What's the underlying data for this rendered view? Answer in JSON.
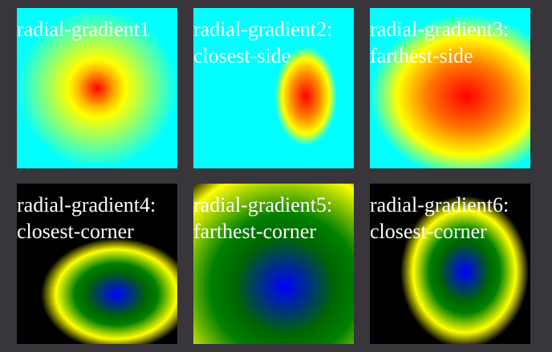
{
  "page": {
    "background": "#38353b"
  },
  "tiles": [
    {
      "id": "t1",
      "lines": [
        "radial-gradient1"
      ],
      "colors": [
        "#ff0000",
        "#ffff00",
        "#00ffff"
      ]
    },
    {
      "id": "t2",
      "lines": [
        "radial-gradient2:",
        "closest-side"
      ],
      "colors": [
        "#ff0000",
        "#ffff00",
        "#00ffff"
      ]
    },
    {
      "id": "t3",
      "lines": [
        "radial-gradient3:",
        "farthest-side"
      ],
      "colors": [
        "#ff0000",
        "#ffff00",
        "#00ffff"
      ]
    },
    {
      "id": "t4",
      "lines": [
        "radial-gradient4:",
        "closest-corner"
      ],
      "colors": [
        "#0000ff",
        "#008000",
        "#ffff00",
        "#000000"
      ]
    },
    {
      "id": "t5",
      "lines": [
        "radial-gradient5:",
        "farthest-corner"
      ],
      "colors": [
        "#0000ff",
        "#008000",
        "#ffff00",
        "#000000"
      ]
    },
    {
      "id": "t6",
      "lines": [
        "radial-gradient6:",
        "closest-corner"
      ],
      "colors": [
        "#0000ff",
        "#008000",
        "#ffff00",
        "#000000"
      ]
    }
  ]
}
